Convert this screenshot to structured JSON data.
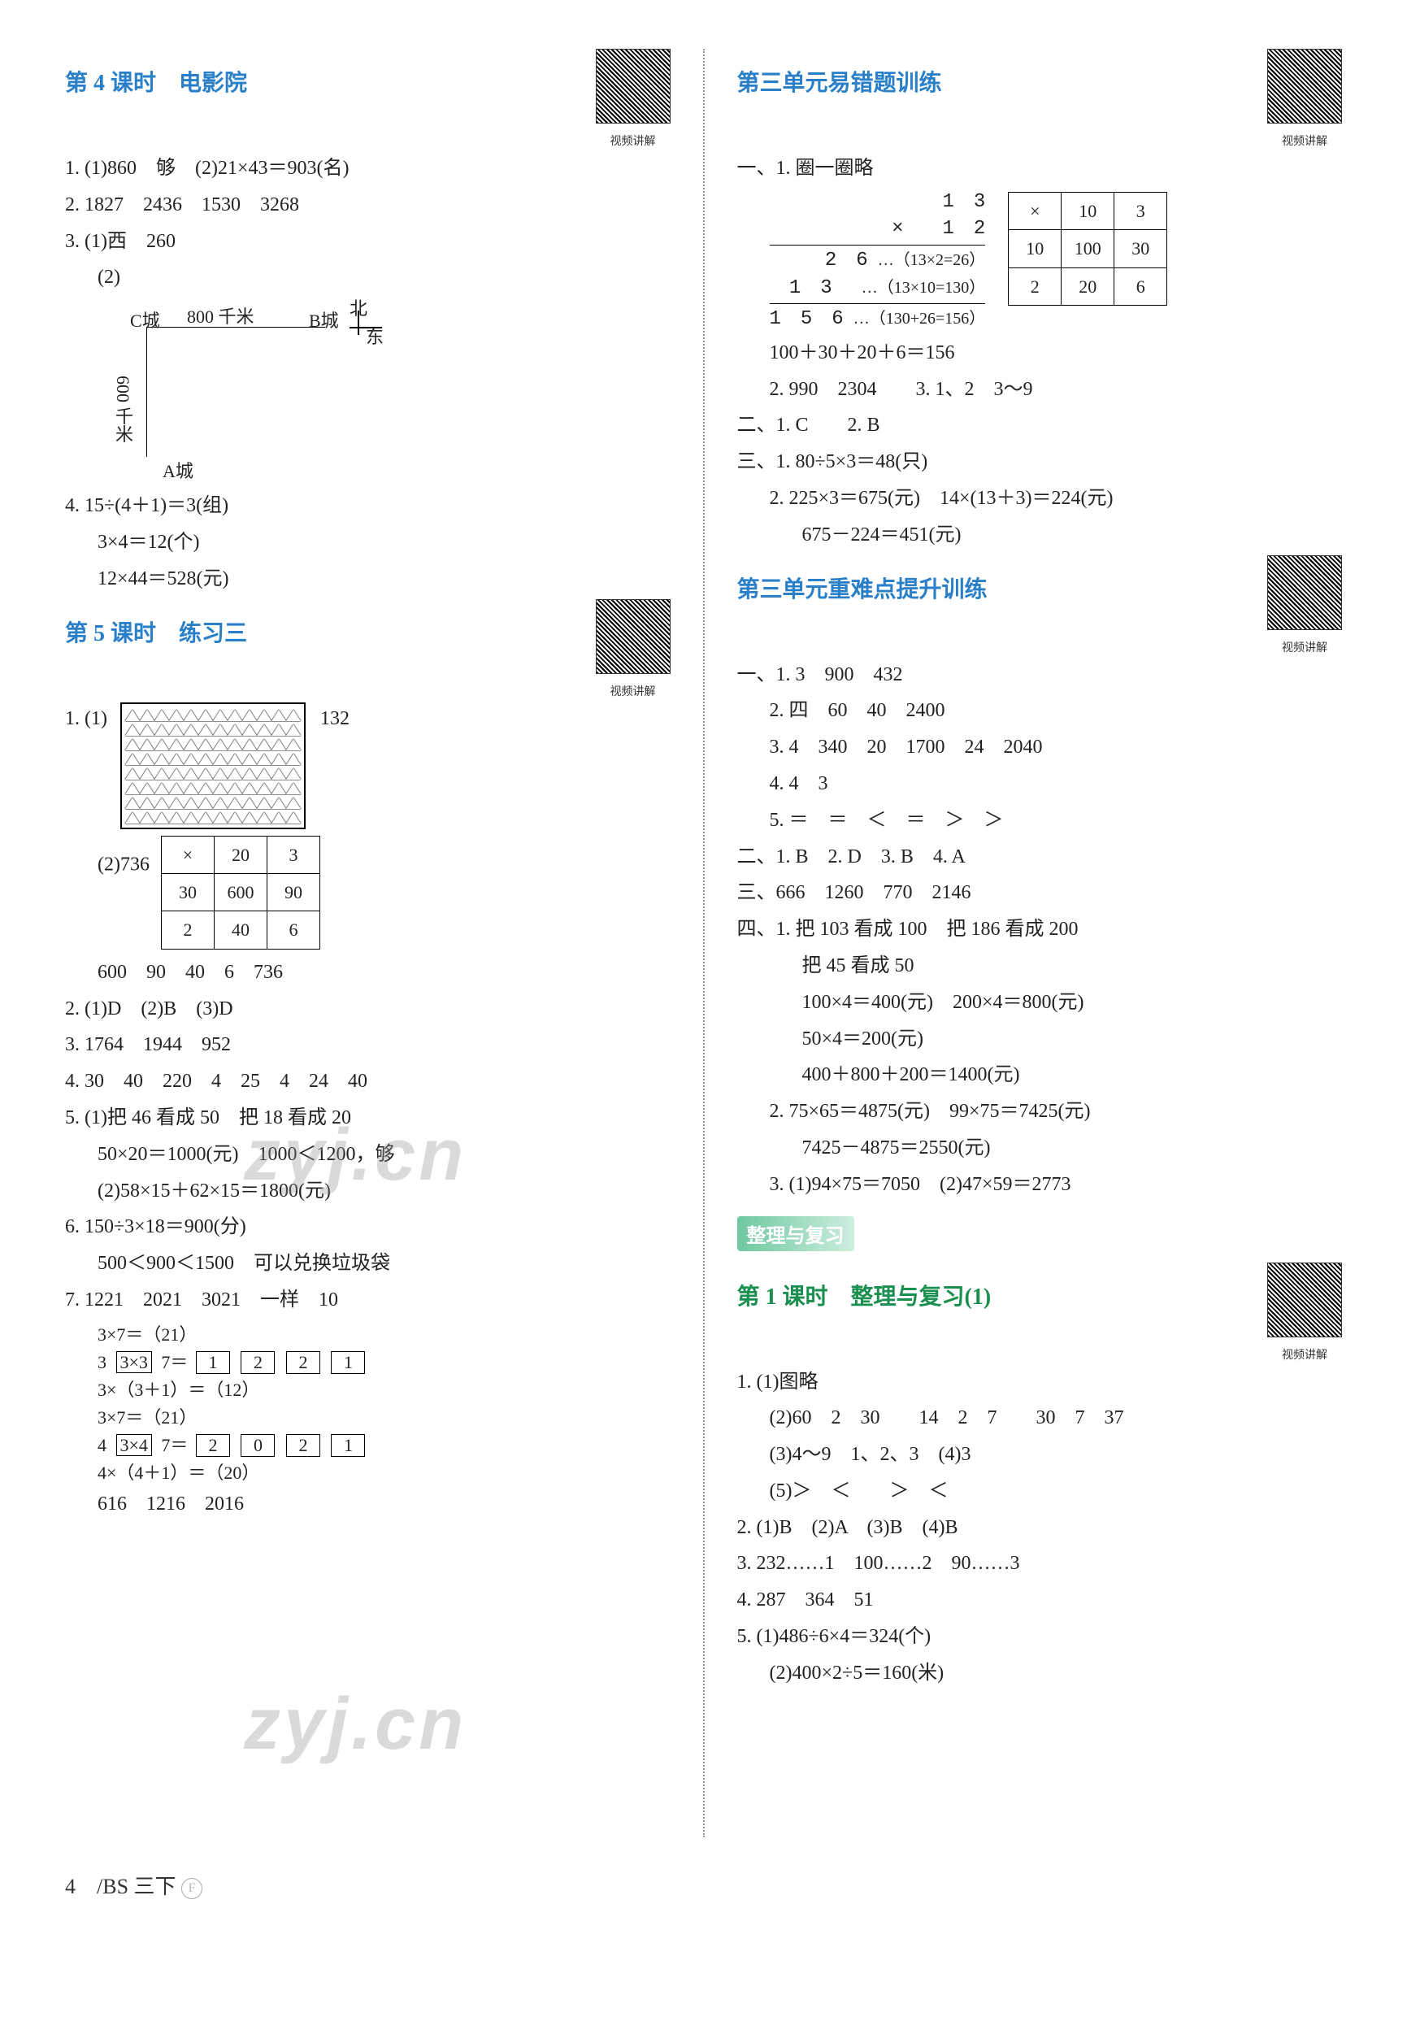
{
  "left": {
    "s4": {
      "title": "第 4 课时　电影院",
      "qr": "视频讲解",
      "l1": "1. (1)860　够　(2)21×43＝903(名)",
      "l2": "2. 1827　2436　1530　3268",
      "l3": "3. (1)西　260",
      "l3b": "(2)",
      "map": {
        "north": "北",
        "east": "东",
        "c": "C城",
        "b": "B城",
        "a": "A城",
        "h": "800 千米",
        "v": "600 千米"
      },
      "l4a": "4. 15÷(4＋1)＝3(组)",
      "l4b": "3×4＝12(个)",
      "l4c": "12×44＝528(元)"
    },
    "s5": {
      "title": "第 5 课时　练习三",
      "qr": "视频讲解",
      "l1": "1. (1)",
      "l1r": "132",
      "tri_rows": 8,
      "tri_cols": 12,
      "l1c": "(2)736",
      "tbl": {
        "h": [
          "×",
          "20",
          "3"
        ],
        "r1": [
          "30",
          "600",
          "90"
        ],
        "r2": [
          "2",
          "40",
          "6"
        ]
      },
      "l1d": "600　90　40　6　736",
      "l2": "2. (1)D　(2)B　(3)D",
      "l3": "3. 1764　1944　952",
      "l4": "4. 30　40　220　4　25　4　24　40",
      "l5a": "5. (1)把 46 看成 50　把 18 看成 20",
      "l5b": "50×20＝1000(元)　1000＜1200，够",
      "l5c": "(2)58×15＋62×15＝1800(元)",
      "l6a": "6. 150÷3×18＝900(分)",
      "l6b": "500＜900＜1500　可以兑换垃圾袋",
      "l7": "7. 1221　2021　3021　一样　10",
      "tree1": {
        "e1": "3×7＝（21）",
        "e2": {
          "pre": "3",
          "a": "3×3",
          "b": "7＝",
          "boxes": [
            "1",
            "2",
            "2",
            "1"
          ]
        },
        "e3": "3×（3＋1）＝（12）",
        "e4": "3×7＝（21）",
        "e5": {
          "pre": "4",
          "a": "3×4",
          "b": "7＝",
          "boxes": [
            "2",
            "0",
            "2",
            "1"
          ]
        },
        "e6": "4×（4＋1）＝（20）"
      },
      "l7b": "616　1216　2016"
    }
  },
  "right": {
    "r1": {
      "title": "第三单元易错题训练",
      "qr": "视频讲解",
      "l1": "一、1. 圈一圈略",
      "vcalc": {
        "a": "1　3",
        "b": "×　　1　2",
        "c": "2　6",
        "c_note": "…（13×2=26）",
        "d": "1　3",
        "d_note": "…（13×10=130）",
        "e": "1　5　6",
        "e_note": "…（130+26=156）"
      },
      "tbl": {
        "h": [
          "×",
          "10",
          "3"
        ],
        "r1": [
          "10",
          "100",
          "30"
        ],
        "r2": [
          "2",
          "20",
          "6"
        ]
      },
      "l1b": "100＋30＋20＋6＝156",
      "l2": "2. 990　2304　　3. 1、2　3～9",
      "l3": "二、1. C　　2. B",
      "l4": "三、1. 80÷5×3＝48(只)",
      "l5": "2. 225×3＝675(元)　14×(13＋3)＝224(元)",
      "l6": "675－224＝451(元)"
    },
    "r2": {
      "title": "第三单元重难点提升训练",
      "qr": "视频讲解",
      "l1": "一、1. 3　900　432",
      "l2": "2. 四　60　40　2400",
      "l3": "3. 4　340　20　1700　24　2040",
      "l4": "4. 4　3",
      "l5": "5. ＝　＝　＜　＝　＞　＞",
      "l6": "二、1. B　2. D　3. B　4. A",
      "l7": "三、666　1260　770　2146",
      "l8": "四、1. 把 103 看成 100　把 186 看成 200",
      "l9": "把 45 看成 50",
      "l10": "100×4＝400(元)　200×4＝800(元)",
      "l11": "50×4＝200(元)",
      "l12": "400＋800＋200＝1400(元)",
      "l13": "2. 75×65＝4875(元)　99×75＝7425(元)",
      "l14": "7425－4875＝2550(元)",
      "l15": "3. (1)94×75＝7050　(2)47×59＝2773"
    },
    "banner": "整理与复习",
    "r3": {
      "title": "第 1 课时　整理与复习(1)",
      "qr": "视频讲解",
      "l1": "1. (1)图略",
      "l2": "(2)60　2　30　　14　2　7　　30　7　37",
      "l3": "(3)4～9　1、2、3　(4)3",
      "l4": "(5)＞　＜　　＞　＜",
      "l5": "2. (1)B　(2)A　(3)B　(4)B",
      "l6": "3. 232……1　100……2　90……3",
      "l7": "4. 287　364　51",
      "l8": "5. (1)486÷6×4＝324(个)",
      "l9": "(2)400×2÷5＝160(米)"
    }
  },
  "footer": "4　/BS 三下"
}
